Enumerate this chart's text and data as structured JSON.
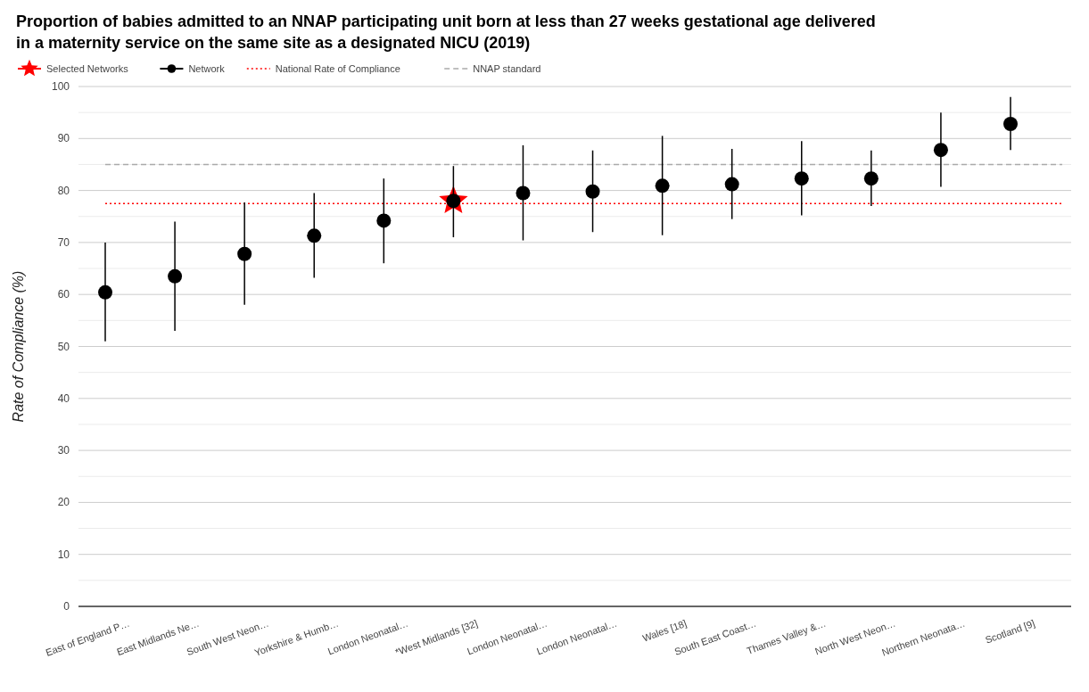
{
  "chart_data": {
    "type": "scatter",
    "title": "Proportion of babies admitted to an NNAP participating unit born at less than 27 weeks gestational age delivered in a maternity service on the same site as a designated NICU (2019)",
    "ylabel": "Rate of Compliance (%)",
    "categories": [
      "East of England P…",
      "East Midlands Ne…",
      "South West Neon…",
      "Yorkshire & Humb…",
      "London Neonatal…",
      "*West Midlands [32]",
      "London Neonatal…",
      "London Neonatal…",
      "Wales [18]",
      "South East Coast…",
      "Thames Valley &…",
      "North West Neon…",
      "Northern Neonata…",
      "Scotland [9]"
    ],
    "series": [
      {
        "name": "Selected Networks",
        "color": "#ff0000",
        "marker": "star",
        "values": [
          null,
          null,
          null,
          null,
          null,
          78,
          null,
          null,
          null,
          null,
          null,
          null,
          null,
          null
        ]
      },
      {
        "name": "Network",
        "color": "#000000",
        "marker": "circle",
        "values": [
          60.4,
          63.5,
          67.8,
          71.3,
          74.2,
          78,
          79.5,
          79.8,
          80.9,
          81.2,
          82.3,
          82.3,
          87.8,
          92.8
        ],
        "errors": [
          [
            51,
            70
          ],
          [
            53,
            74
          ],
          [
            58,
            77.7
          ],
          [
            63.2,
            79.5
          ],
          [
            66,
            82.3
          ],
          [
            71,
            84.7
          ],
          [
            70.4,
            88.7
          ],
          [
            72,
            87.7
          ],
          [
            71.4,
            90.5
          ],
          [
            74.5,
            88
          ],
          [
            75.2,
            89.5
          ],
          [
            77,
            87.7
          ],
          [
            80.7,
            95
          ],
          [
            87.8,
            98
          ]
        ]
      }
    ],
    "ref_lines": [
      {
        "axis": "y",
        "value": 77.5,
        "label": "National Rate of Compliance",
        "color": "#ff0000",
        "line_style": "dotted"
      },
      {
        "axis": "y",
        "value": 85,
        "label": "NNAP standard",
        "color": "#aaaaaa",
        "line_style": "dashed"
      }
    ],
    "ylim": [
      0,
      100
    ],
    "yticks": [
      0,
      10,
      20,
      30,
      40,
      50,
      60,
      70,
      80,
      90,
      100
    ],
    "grid": "y",
    "legend": "top left"
  }
}
